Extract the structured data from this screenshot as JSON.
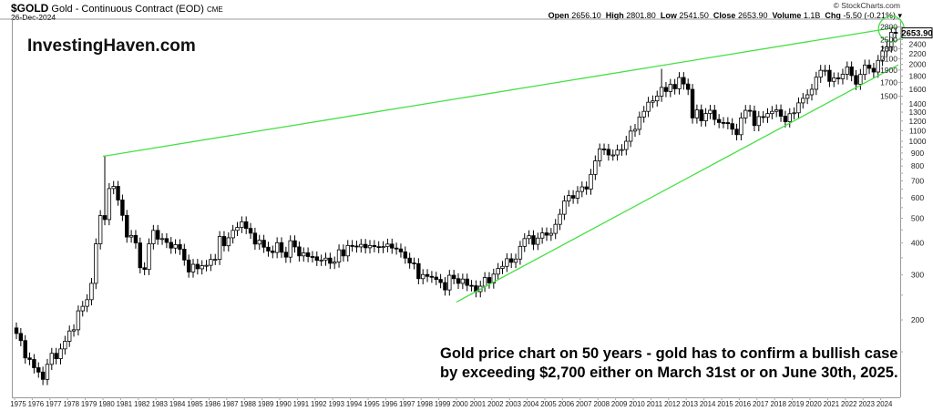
{
  "header": {
    "symbol": "$GOLD",
    "name": "Gold - Continuous Contract (EOD)",
    "exchange": "CME",
    "date": "26-Dec-2024",
    "credit": "© StockCharts.com",
    "open_label": "Open",
    "open": "2656.10",
    "high_label": "High",
    "high": "2801.80",
    "low_label": "Low",
    "low": "2541.50",
    "close_label": "Close",
    "close": "2653.90",
    "volume_label": "Volume",
    "volume": "1.1B",
    "chg_label": "Chg",
    "chg": "-5.50 (-0.21%)"
  },
  "watermark": "InvestingHaven.com",
  "annotation": [
    "Gold price chart on 50 years - gold has to confirm a bullish case",
    "by exceeding $2,700 either on March 31st or on June 30th, 2025."
  ],
  "chart_data": {
    "type": "candlestick",
    "period": "quarterly",
    "yscale": "log",
    "ylim": [
      130,
      3000
    ],
    "first_open": 186,
    "start": "1975-Q1",
    "closes": [
      177,
      166,
      142,
      140,
      130,
      125,
      117,
      134,
      148,
      141,
      154,
      165,
      181,
      183,
      217,
      226,
      240,
      278,
      397,
      512,
      494,
      653,
      666,
      589,
      513,
      422,
      428,
      400,
      320,
      315,
      397,
      448,
      414,
      416,
      402,
      382,
      394,
      378,
      343,
      308,
      330,
      317,
      326,
      327,
      345,
      345,
      424,
      390,
      419,
      448,
      460,
      484,
      456,
      437,
      396,
      410,
      385,
      372,
      367,
      401,
      368,
      352,
      408,
      386,
      356,
      366,
      354,
      353,
      342,
      343,
      349,
      333,
      337,
      376,
      356,
      391,
      389,
      386,
      395,
      383,
      391,
      387,
      384,
      387,
      396,
      382,
      379,
      369,
      349,
      334,
      332,
      290,
      301,
      296,
      294,
      288,
      280,
      262,
      299,
      290,
      278,
      289,
      273,
      272,
      258,
      271,
      293,
      279,
      302,
      318,
      324,
      347,
      336,
      346,
      388,
      416,
      427,
      395,
      418,
      438,
      429,
      436,
      473,
      518,
      584,
      613,
      599,
      636,
      663,
      650,
      742,
      838,
      933,
      930,
      884,
      884,
      924,
      928,
      1000,
      1096,
      1113,
      1244,
      1309,
      1421,
      1439,
      1502,
      1624,
      1566,
      1669,
      1604,
      1776,
      1675,
      1596,
      1234,
      1326,
      1202,
      1284,
      1322,
      1217,
      1184,
      1183,
      1172,
      1115,
      1061,
      1234,
      1321,
      1313,
      1152,
      1249,
      1242,
      1283,
      1309,
      1327,
      1253,
      1192,
      1282,
      1292,
      1413,
      1472,
      1520,
      1597,
      1781,
      1895,
      1895,
      1715,
      1770,
      1757,
      1829,
      1954,
      1807,
      1672,
      1826,
      1987,
      1929,
      1866,
      2072,
      2254,
      2339,
      2668,
      2653.9
    ],
    "notable_highs": {
      "1980-Q1": 873,
      "2011-Q3": 1920,
      "2024-Q4": 2801.8
    },
    "last_price_label": "2653.90",
    "y_ticks": [
      200,
      300,
      400,
      500,
      600,
      700,
      800,
      900,
      1000,
      1100,
      1200,
      1300,
      1400,
      1500,
      1600,
      1700,
      1800,
      1900,
      2000,
      2100,
      2200,
      2300,
      2400,
      2500,
      2800
    ],
    "x_ticks": [
      "1975",
      "1976",
      "1977",
      "1978",
      "1979",
      "1980",
      "1981",
      "1982",
      "1983",
      "1984",
      "1985",
      "1986",
      "1987",
      "1988",
      "1989",
      "1990",
      "1991",
      "1992",
      "1993",
      "1994",
      "1995",
      "1996",
      "1997",
      "1998",
      "1999",
      "2000",
      "2001",
      "2002",
      "2003",
      "2004",
      "2005",
      "2006",
      "2007",
      "2008",
      "2009",
      "2010",
      "2011",
      "2012",
      "2013",
      "2014",
      "2015",
      "2016",
      "2017",
      "2018",
      "2019",
      "2020",
      "2021",
      "2022",
      "2023",
      "2024"
    ],
    "trendlines": [
      {
        "from": [
          1980.0,
          873
        ],
        "to": [
          2025.0,
          2800
        ]
      },
      {
        "from": [
          2000.0,
          235
        ],
        "to": [
          2025.0,
          1990
        ]
      }
    ],
    "highlight_circle_at": [
      2024.6,
      2750
    ],
    "colors": {
      "trendline": "#44e044",
      "up": "#ffffff",
      "down": "#000000",
      "axis": "#999999"
    }
  }
}
